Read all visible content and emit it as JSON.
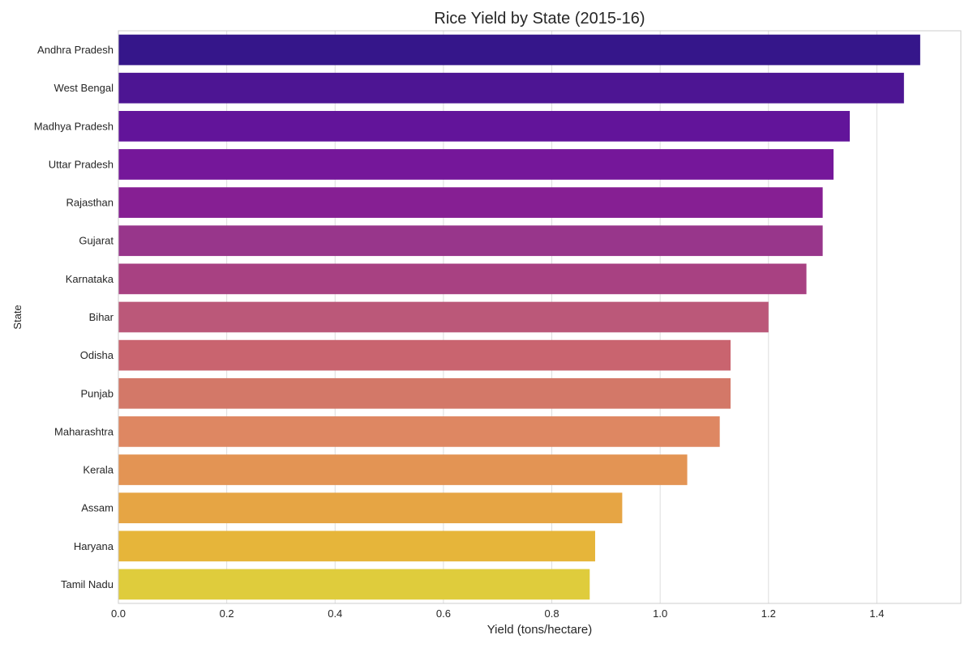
{
  "chart_data": {
    "type": "bar",
    "orientation": "horizontal",
    "title": "Rice Yield by State (2015-16)",
    "xlabel": "Yield (tons/hectare)",
    "ylabel": "State",
    "xlim": [
      0,
      1.555
    ],
    "xticks": [
      0.0,
      0.2,
      0.4,
      0.6,
      0.8,
      1.0,
      1.2,
      1.4
    ],
    "xtick_labels": [
      "0.0",
      "0.2",
      "0.4",
      "0.6",
      "0.8",
      "1.0",
      "1.2",
      "1.4"
    ],
    "grid": true,
    "categories": [
      "Andhra Pradesh",
      "West Bengal",
      "Madhya Pradesh",
      "Uttar Pradesh",
      "Rajasthan",
      "Gujarat",
      "Karnataka",
      "Bihar",
      "Odisha",
      "Punjab",
      "Maharashtra",
      "Kerala",
      "Assam",
      "Haryana",
      "Tamil Nadu"
    ],
    "values": [
      1.48,
      1.45,
      1.35,
      1.32,
      1.3,
      1.3,
      1.27,
      1.2,
      1.13,
      1.13,
      1.11,
      1.05,
      0.93,
      0.88,
      0.87
    ],
    "colors": [
      "#35168a",
      "#4d1593",
      "#62149a",
      "#75179a",
      "#861f93",
      "#98368b",
      "#a84182",
      "#bb5879",
      "#c9646f",
      "#d37868",
      "#de8762",
      "#e39454",
      "#e6a544",
      "#e6b53a",
      "#dfcc3c"
    ]
  }
}
